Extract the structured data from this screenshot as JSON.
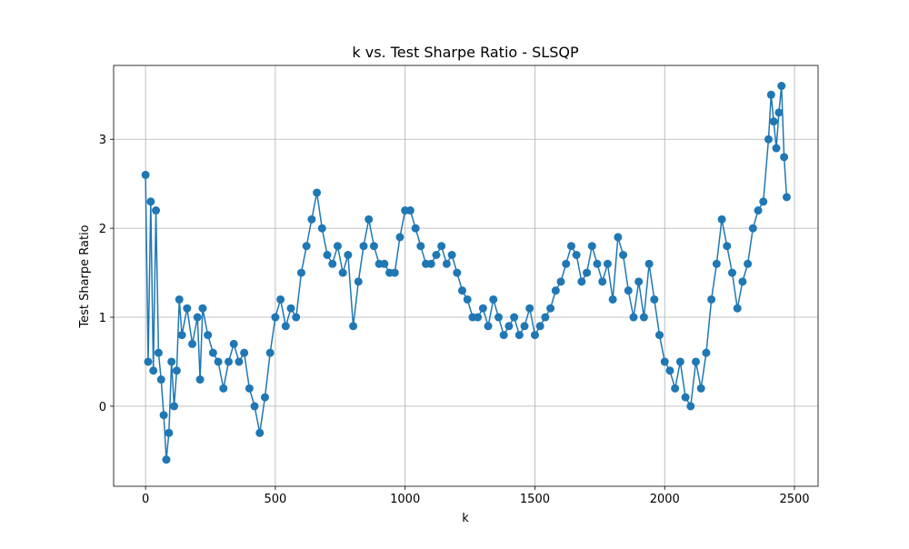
{
  "chart_data": {
    "type": "line",
    "title": "k vs. Test Sharpe Ratio - SLSQP",
    "xlabel": "k",
    "ylabel": "Test Sharpe Ratio",
    "color": "#1f77b4",
    "grid": true,
    "marker": "o",
    "x": [
      0,
      10,
      20,
      30,
      40,
      50,
      60,
      70,
      80,
      90,
      100,
      110,
      120,
      130,
      140,
      160,
      180,
      200,
      210,
      220,
      240,
      260,
      280,
      300,
      320,
      340,
      360,
      380,
      400,
      420,
      440,
      460,
      480,
      500,
      520,
      540,
      560,
      580,
      600,
      620,
      640,
      660,
      680,
      700,
      720,
      740,
      760,
      780,
      800,
      820,
      840,
      860,
      880,
      900,
      920,
      940,
      960,
      980,
      1000,
      1020,
      1040,
      1060,
      1080,
      1100,
      1120,
      1140,
      1160,
      1180,
      1200,
      1220,
      1240,
      1260,
      1280,
      1300,
      1320,
      1340,
      1360,
      1380,
      1400,
      1420,
      1440,
      1460,
      1480,
      1500,
      1520,
      1540,
      1560,
      1580,
      1600,
      1620,
      1640,
      1660,
      1680,
      1700,
      1720,
      1740,
      1760,
      1780,
      1800,
      1820,
      1840,
      1860,
      1880,
      1900,
      1920,
      1940,
      1960,
      1980,
      2000,
      2020,
      2040,
      2060,
      2080,
      2100,
      2120,
      2140,
      2160,
      2180,
      2200,
      2220,
      2240,
      2260,
      2280,
      2300,
      2320,
      2340,
      2360,
      2380,
      2400,
      2410,
      2420,
      2430,
      2440,
      2450,
      2460,
      2470
    ],
    "values": [
      2.6,
      0.5,
      2.3,
      0.4,
      2.2,
      0.6,
      0.3,
      -0.1,
      -0.6,
      -0.3,
      0.5,
      0.0,
      0.4,
      1.2,
      0.8,
      1.1,
      0.7,
      1.0,
      0.3,
      1.1,
      0.8,
      0.6,
      0.5,
      0.2,
      0.5,
      0.7,
      0.5,
      0.6,
      0.2,
      0.0,
      -0.3,
      0.1,
      0.6,
      1.0,
      1.2,
      0.9,
      1.1,
      1.0,
      1.5,
      1.8,
      2.1,
      2.4,
      2.0,
      1.7,
      1.6,
      1.8,
      1.5,
      1.7,
      0.9,
      1.4,
      1.8,
      2.1,
      1.8,
      1.6,
      1.6,
      1.5,
      1.5,
      1.9,
      2.2,
      2.2,
      2.0,
      1.8,
      1.6,
      1.6,
      1.7,
      1.8,
      1.6,
      1.7,
      1.5,
      1.3,
      1.2,
      1.0,
      1.0,
      1.1,
      0.9,
      1.2,
      1.0,
      0.8,
      0.9,
      1.0,
      0.8,
      0.9,
      1.1,
      0.8,
      0.9,
      1.0,
      1.1,
      1.3,
      1.4,
      1.6,
      1.8,
      1.7,
      1.4,
      1.5,
      1.8,
      1.6,
      1.4,
      1.6,
      1.2,
      1.9,
      1.7,
      1.3,
      1.0,
      1.4,
      1.0,
      1.6,
      1.2,
      0.8,
      0.5,
      0.4,
      0.2,
      0.5,
      0.1,
      0.0,
      0.5,
      0.2,
      0.6,
      1.2,
      1.6,
      2.1,
      1.8,
      1.5,
      1.1,
      1.4,
      1.6,
      2.0,
      2.2,
      2.3,
      3.0,
      3.5,
      3.2,
      2.9,
      3.3,
      3.6,
      2.8,
      2.35
    ],
    "xlim": [
      -123,
      2591
    ],
    "ylim": [
      -0.9,
      3.83
    ],
    "xticks": [
      0,
      500,
      1000,
      1500,
      2000,
      2500
    ],
    "yticks": [
      0,
      1,
      2,
      3
    ]
  }
}
